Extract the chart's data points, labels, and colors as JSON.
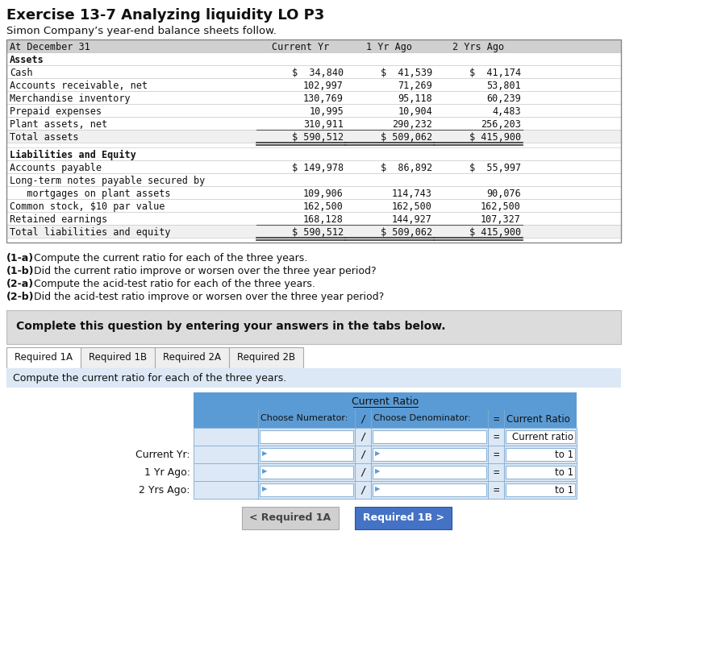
{
  "title": "Exercise 13-7 Analyzing liquidity LO P3",
  "subtitle": "Simon Company’s year-end balance sheets follow.",
  "bg_color": "#ffffff",
  "balance_sheet": {
    "columns": [
      "At December 31",
      "Current Yr",
      "1 Yr Ago",
      "2 Yrs Ago"
    ],
    "header_bg": "#d0d0d0",
    "sections": [
      {
        "section_title": "Assets",
        "rows": [
          {
            "label": "Cash",
            "values": [
              "$  34,840",
              "$  41,539 $",
              "41,174"
            ],
            "v": [
              "$  34,840",
              "$  41,539",
              "$  41,174"
            ]
          },
          {
            "label": "Accounts receivable, net",
            "v": [
              "102,997",
              "71,269",
              "53,801"
            ]
          },
          {
            "label": "Merchandise inventory",
            "v": [
              "130,769",
              "95,118",
              "60,239"
            ]
          },
          {
            "label": "Prepaid expenses",
            "v": [
              "10,995",
              "10,904",
              "4,483"
            ]
          },
          {
            "label": "Plant assets, net",
            "v": [
              "310,911",
              "290,232",
              "256,203"
            ],
            "underline": true
          }
        ],
        "total_row": {
          "label": "Total assets",
          "v": [
            "$ 590,512",
            "$ 509,062",
            "$ 415,900"
          ]
        }
      },
      {
        "section_title": "Liabilities and Equity",
        "rows": [
          {
            "label": "Accounts payable",
            "v": [
              "$ 149,978",
              "$  86,892",
              "$  55,997"
            ]
          },
          {
            "label": "Long-term notes payable secured by",
            "v": [
              "",
              "",
              ""
            ]
          },
          {
            "label": "   mortgages on plant assets",
            "v": [
              "109,906",
              "114,743",
              "90,076"
            ]
          },
          {
            "label": "Common stock, $10 par value",
            "v": [
              "162,500",
              "162,500",
              "162,500"
            ]
          },
          {
            "label": "Retained earnings",
            "v": [
              "168,128",
              "144,927",
              "107,327"
            ],
            "underline": true
          }
        ],
        "total_row": {
          "label": "Total liabilities and equity",
          "v": [
            "$ 590,512",
            "$ 509,062",
            "$ 415,900"
          ]
        }
      }
    ]
  },
  "questions": [
    [
      "(1-a)",
      " Compute the current ratio for each of the three years."
    ],
    [
      "(1-b)",
      " Did the current ratio improve or worsen over the three year period?"
    ],
    [
      "(2-a)",
      " Compute the acid-test ratio for each of the three years."
    ],
    [
      "(2-b)",
      " Did the acid-test ratio improve or worsen over the three year period?"
    ]
  ],
  "complete_text": "Complete this question by entering your answers in the tabs below.",
  "tabs": [
    "Required 1A",
    "Required 1B",
    "Required 2A",
    "Required 2B"
  ],
  "instruction_text": "Compute the current ratio for each of the three years.",
  "cr_title": "Current Ratio",
  "cr_header": [
    "Choose Numerator:",
    "/",
    "Choose Denominator:",
    "=",
    "Current Ratio"
  ],
  "cr_blank_last": "Current ratio",
  "cr_rows": [
    "Current Yr:",
    "1 Yr Ago:",
    "2 Yrs Ago:"
  ],
  "btn_left_text": "< Required 1A",
  "btn_right_text": "Required 1B >",
  "btn_left_bg": "#d0d0d0",
  "btn_right_bg": "#4472c4",
  "btn_left_color": "#444444",
  "btn_right_color": "#ffffff"
}
